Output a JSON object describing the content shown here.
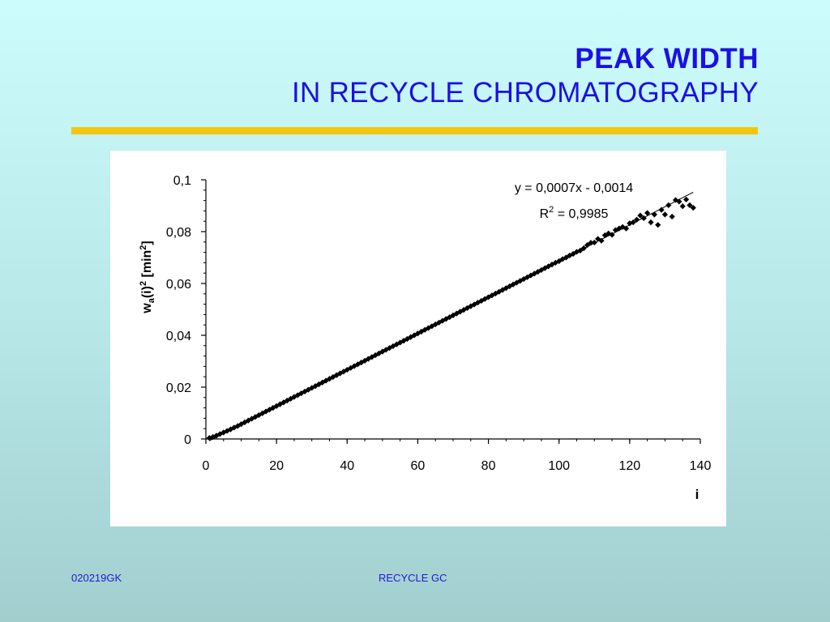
{
  "slide": {
    "title_line1": "PEAK WIDTH",
    "title_line2": "IN RECYCLE CHROMATOGRAPHY",
    "footer_left": "020219GK",
    "footer_center": "RECYCLE GC"
  },
  "colors": {
    "title": "#1a10e6",
    "rule": "#f3c60e",
    "footer": "#2218d8"
  },
  "chart_data": {
    "type": "scatter",
    "xlabel": "i",
    "ylabel_parts": {
      "w": "w",
      "sub": "a",
      "mid": "(i)",
      "sup": "2",
      "unit_open": " [min",
      "unit_sup": "2",
      "unit_close": "]"
    },
    "xlim": [
      0,
      140
    ],
    "ylim": [
      0,
      0.1
    ],
    "x_ticks": [
      0,
      20,
      40,
      60,
      80,
      100,
      120,
      140
    ],
    "x_tick_labels": [
      "0",
      "20",
      "40",
      "60",
      "80",
      "100",
      "120",
      "140"
    ],
    "y_ticks": [
      0,
      0.02,
      0.04,
      0.06,
      0.08,
      0.1
    ],
    "y_tick_labels": [
      "0",
      "0,02",
      "0,04",
      "0,06",
      "0,08",
      "0,1"
    ],
    "grid": false,
    "legend": "none",
    "trendline": {
      "slope": 0.0007,
      "intercept": -0.0014,
      "x_range": [
        1,
        138
      ]
    },
    "equation_text": "y = 0,0007x - 0,0014",
    "r2_parts": {
      "base": "R",
      "sup": "2",
      "rest": " = 0,9985"
    },
    "series": [
      {
        "x": [
          1,
          2,
          3,
          4,
          5,
          6,
          7,
          8,
          9,
          10,
          11,
          12,
          13,
          14,
          15,
          16,
          17,
          18,
          19,
          20,
          21,
          22,
          23,
          24,
          25,
          26,
          27,
          28,
          29,
          30,
          31,
          32,
          33,
          34,
          35,
          36,
          37,
          38,
          39,
          40,
          41,
          42,
          43,
          44,
          45,
          46,
          47,
          48,
          49,
          50,
          51,
          52,
          53,
          54,
          55,
          56,
          57,
          58,
          59,
          60,
          61,
          62,
          63,
          64,
          65,
          66,
          67,
          68,
          69,
          70,
          71,
          72,
          73,
          74,
          75,
          76,
          77,
          78,
          79,
          80,
          81,
          82,
          83,
          84,
          85,
          86,
          87,
          88,
          89,
          90,
          91,
          92,
          93,
          94,
          95,
          96,
          97,
          98,
          99,
          100,
          101,
          102,
          103,
          104,
          105,
          106,
          107,
          108,
          109,
          110,
          111,
          112,
          113,
          114,
          115,
          116,
          117,
          118,
          119,
          120,
          121,
          122,
          123,
          124,
          125,
          126,
          127,
          128,
          129,
          130,
          131,
          132,
          133,
          134,
          135,
          136,
          137,
          138
        ],
        "y": [
          0.0004,
          0.0008,
          0.0013,
          0.0019,
          0.0025,
          0.0031,
          0.0037,
          0.0044,
          0.005,
          0.0057,
          0.0064,
          0.0071,
          0.0078,
          0.0085,
          0.0092,
          0.0099,
          0.0106,
          0.0113,
          0.012,
          0.0127,
          0.0134,
          0.0141,
          0.0148,
          0.0155,
          0.0162,
          0.0169,
          0.0176,
          0.0183,
          0.019,
          0.0197,
          0.0204,
          0.0211,
          0.0218,
          0.0225,
          0.0232,
          0.0239,
          0.0246,
          0.0253,
          0.026,
          0.0267,
          0.0274,
          0.0281,
          0.0288,
          0.0295,
          0.0302,
          0.0309,
          0.0316,
          0.0323,
          0.033,
          0.0337,
          0.0344,
          0.0351,
          0.0358,
          0.0365,
          0.0372,
          0.0379,
          0.0386,
          0.0393,
          0.04,
          0.0407,
          0.0414,
          0.0421,
          0.0428,
          0.0435,
          0.0442,
          0.0449,
          0.0456,
          0.0463,
          0.047,
          0.0477,
          0.0484,
          0.0491,
          0.0498,
          0.0505,
          0.0512,
          0.0519,
          0.0526,
          0.0533,
          0.054,
          0.0547,
          0.0554,
          0.0561,
          0.0568,
          0.0575,
          0.0582,
          0.0589,
          0.0596,
          0.0603,
          0.061,
          0.0617,
          0.0624,
          0.0631,
          0.0638,
          0.0645,
          0.0652,
          0.0659,
          0.0666,
          0.0673,
          0.068,
          0.0686,
          0.0694,
          0.07,
          0.0708,
          0.0714,
          0.0722,
          0.0727,
          0.0736,
          0.0748,
          0.0757,
          0.0758,
          0.0772,
          0.0765,
          0.0786,
          0.0793,
          0.0788,
          0.0806,
          0.0812,
          0.0818,
          0.0812,
          0.0832,
          0.0836,
          0.0846,
          0.0862,
          0.0852,
          0.0872,
          0.0836,
          0.0866,
          0.0826,
          0.0884,
          0.0866,
          0.0902,
          0.0858,
          0.0922,
          0.0916,
          0.0898,
          0.0924,
          0.0902,
          0.0892
        ]
      }
    ]
  }
}
